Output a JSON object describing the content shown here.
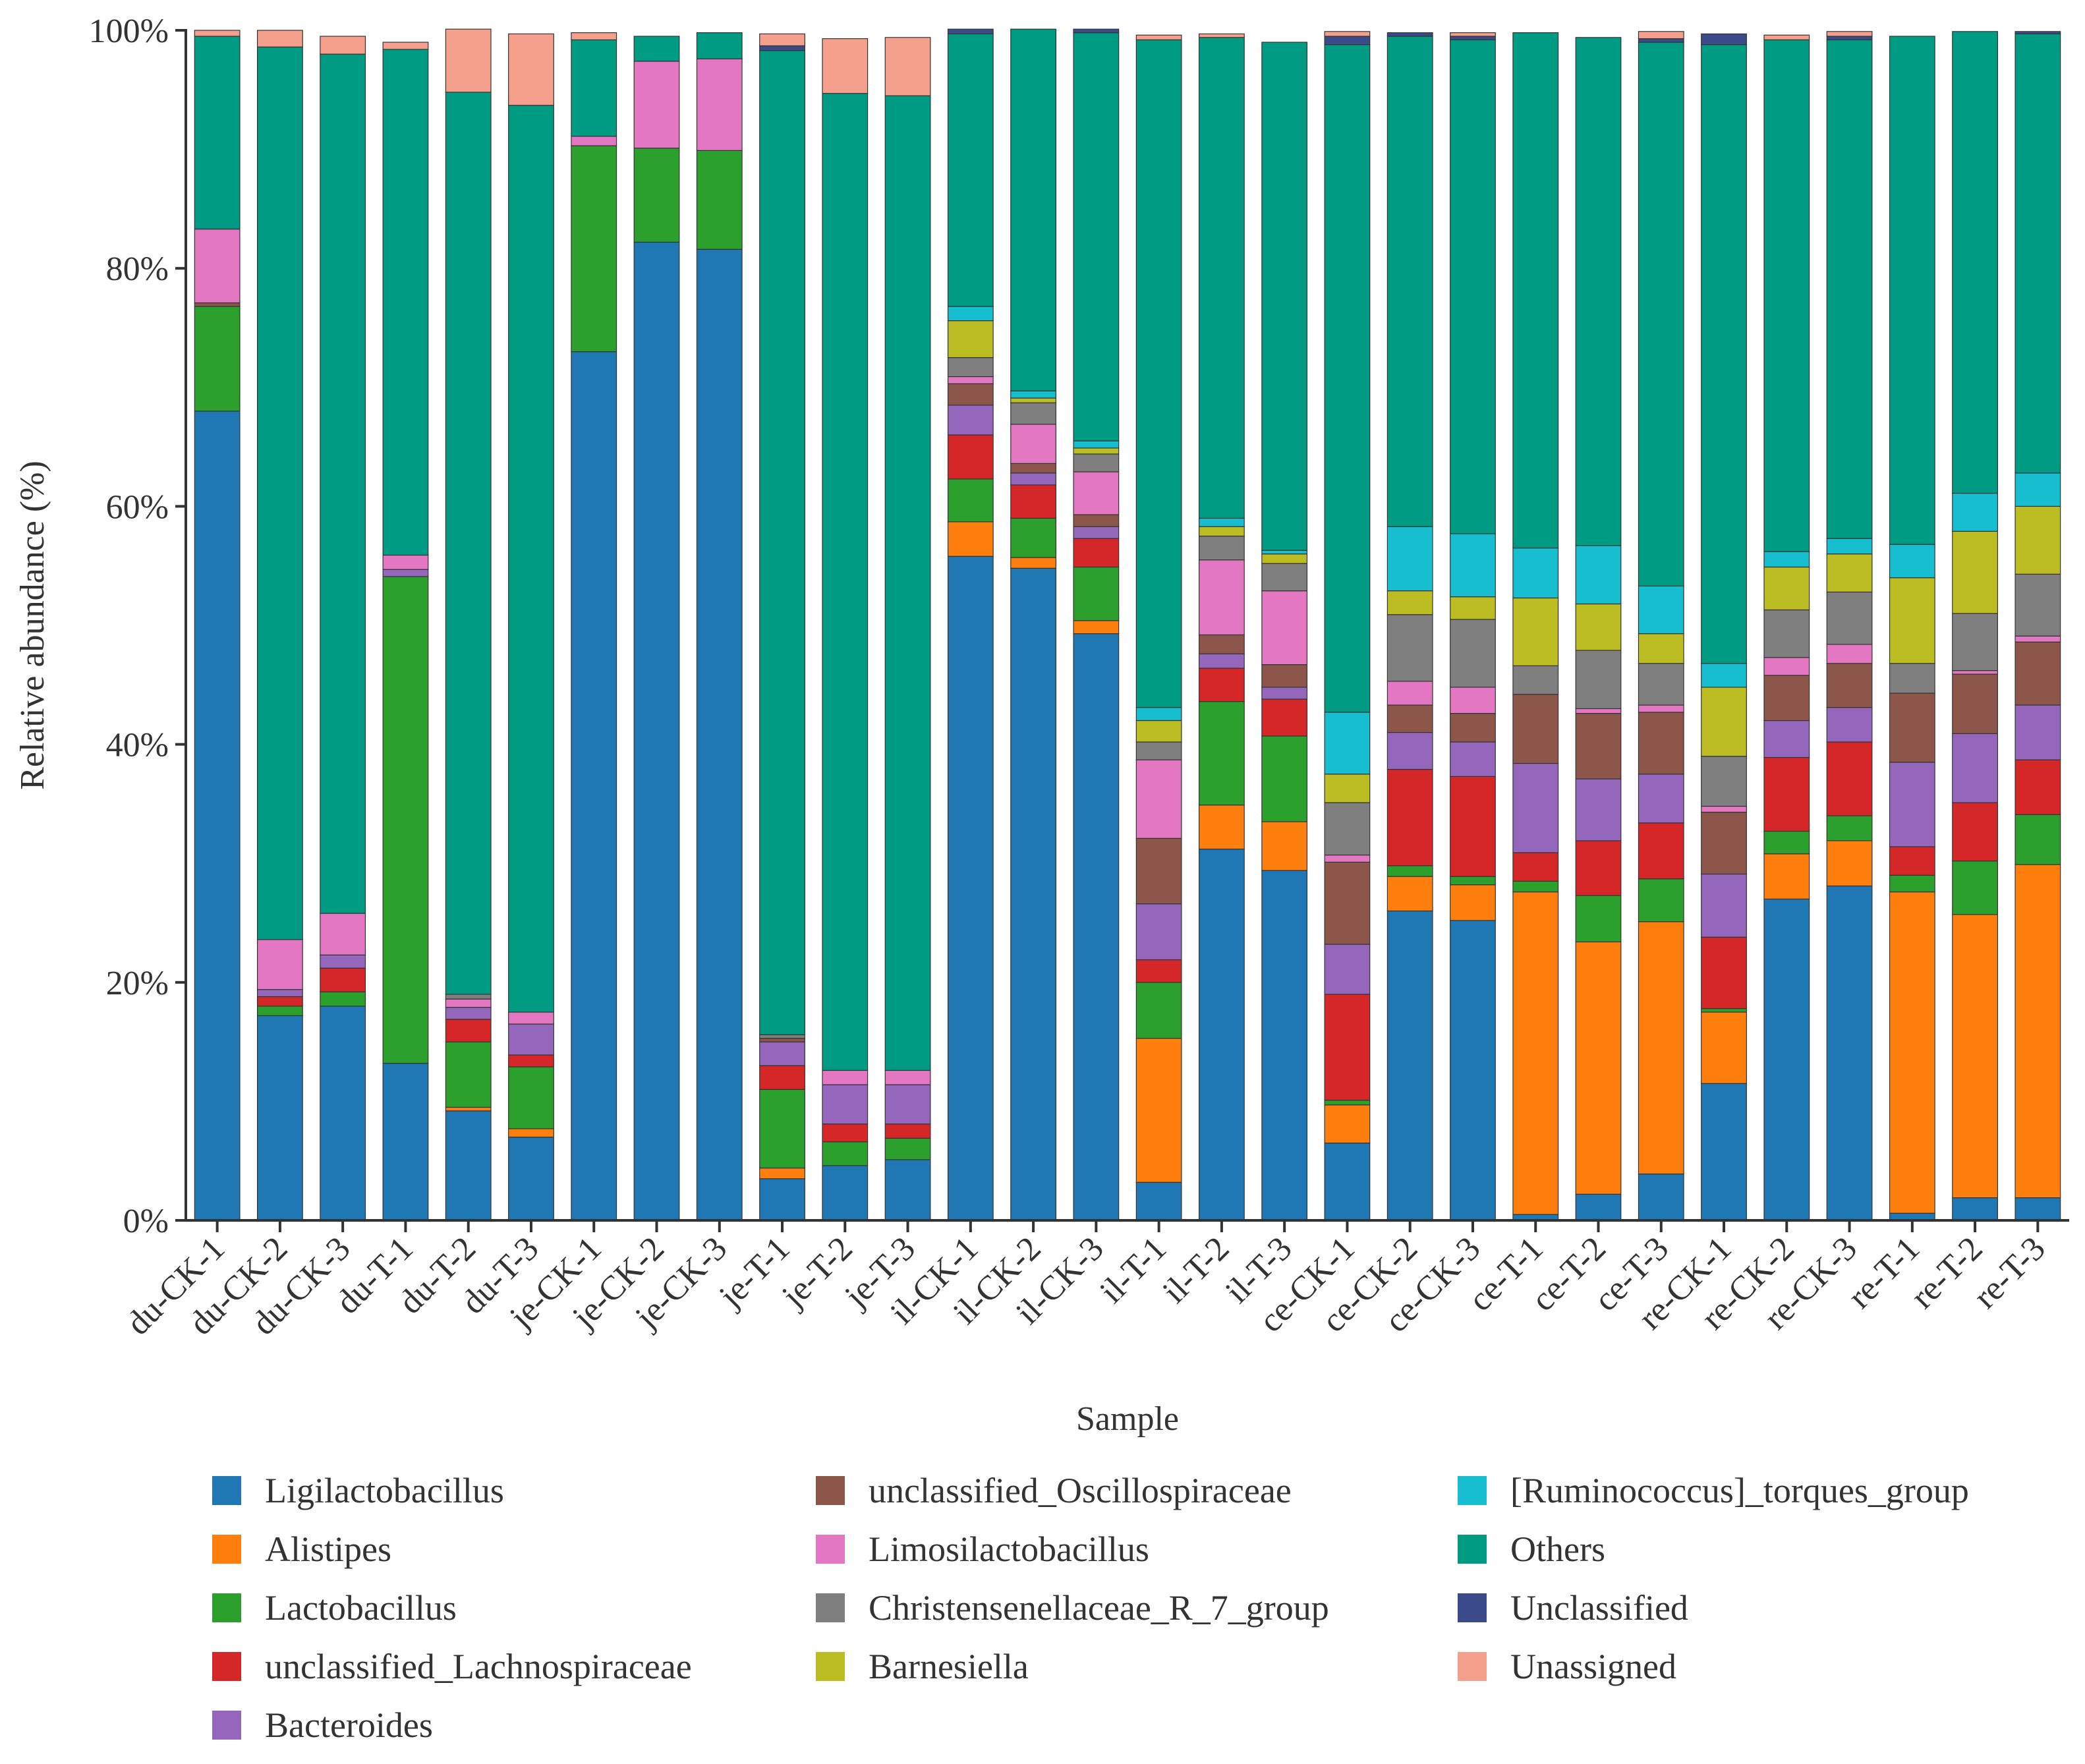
{
  "chart_data": {
    "type": "bar",
    "stacked": true,
    "xlabel": "Sample",
    "ylabel": "Relative abundance (%)",
    "ylim": [
      0,
      100
    ],
    "y_ticks": [
      "0%",
      "20%",
      "40%",
      "60%",
      "80%",
      "100%"
    ],
    "categories": [
      "du-CK-1",
      "du-CK-2",
      "du-CK-3",
      "du-T-1",
      "du-T-2",
      "du-T-3",
      "je-CK-1",
      "je-CK-2",
      "je-CK-3",
      "je-T-1",
      "je-T-2",
      "je-T-3",
      "il-CK-1",
      "il-CK-2",
      "il-CK-3",
      "il-T-1",
      "il-T-2",
      "il-T-3",
      "ce-CK-1",
      "ce-CK-2",
      "ce-CK-3",
      "ce-T-1",
      "ce-T-2",
      "ce-T-3",
      "re-CK-1",
      "re-CK-2",
      "re-CK-3",
      "re-T-1",
      "re-T-2",
      "re-T-3"
    ],
    "legend_position": "bottom",
    "series": [
      {
        "name": "Ligilactobacillus",
        "color": "#1f77b4",
        "values": [
          68,
          17.2,
          18,
          13.2,
          9.2,
          7,
          73,
          82.2,
          81.6,
          3.5,
          4.6,
          5.1,
          55.8,
          54.8,
          49.3,
          3.2,
          31.2,
          29.4,
          6.5,
          26,
          25.2,
          0.5,
          2.2,
          3.9,
          11.5,
          27,
          28.1,
          0.6,
          1.9,
          1.9
        ]
      },
      {
        "name": "Alistipes",
        "color": "#ff7f0e",
        "values": [
          0,
          0,
          0,
          0,
          0.3,
          0.7,
          0,
          0,
          0,
          0.9,
          0,
          0,
          2.9,
          0.9,
          1.1,
          12.1,
          3.7,
          4.1,
          3.2,
          2.9,
          3,
          27.1,
          21.2,
          21.2,
          6,
          3.8,
          3.8,
          27,
          23.8,
          28
        ]
      },
      {
        "name": "Lactobacillus",
        "color": "#2ca02c",
        "values": [
          8.8,
          0.8,
          1.2,
          40.9,
          5.5,
          5.2,
          17.3,
          7.9,
          8.3,
          6.6,
          2,
          1.8,
          3.6,
          3.3,
          4.5,
          4.7,
          8.7,
          7.2,
          0.4,
          0.9,
          0.7,
          0.9,
          3.9,
          3.6,
          0.3,
          1.9,
          2.1,
          1.4,
          4.5,
          4.2
        ]
      },
      {
        "name": "unclassified_Lachnospiraceae",
        "color": "#d62728",
        "values": [
          0,
          0.8,
          2,
          0,
          1.9,
          1,
          0,
          0,
          0,
          2,
          1.5,
          1.2,
          3.7,
          2.8,
          2.4,
          1.9,
          2.8,
          3.1,
          8.9,
          8.1,
          8.4,
          2.4,
          4.6,
          4.7,
          6,
          6.2,
          6.2,
          2.4,
          4.9,
          4.6
        ]
      },
      {
        "name": "Bacteroides",
        "color": "#9467bd",
        "values": [
          0,
          0.6,
          1.1,
          0.6,
          1,
          2.6,
          0,
          0,
          0,
          2,
          3.3,
          3.3,
          2.5,
          1,
          1,
          4.7,
          1.2,
          1,
          4.2,
          3.1,
          2.9,
          7.5,
          5.2,
          4.1,
          5.3,
          3.1,
          2.9,
          7.1,
          5.8,
          4.6
        ]
      },
      {
        "name": "unclassified_Oscillospiraceae",
        "color": "#8c564b",
        "values": [
          0.3,
          0,
          0,
          0,
          0,
          0,
          0,
          0,
          0,
          0.3,
          0,
          0,
          1.8,
          0.8,
          1,
          5.5,
          1.6,
          1.9,
          6.9,
          2.3,
          2.4,
          5.8,
          5.5,
          5.2,
          5.2,
          3.8,
          3.7,
          5.8,
          5,
          5.3
        ]
      },
      {
        "name": "Limosilactobacillus",
        "color": "#e377c2",
        "values": [
          6.2,
          4.2,
          3.5,
          1.2,
          0.7,
          1,
          0.8,
          7.3,
          7.7,
          0,
          1.2,
          1.2,
          0.6,
          3.3,
          3.6,
          6.6,
          6.3,
          6.2,
          0.6,
          2,
          2.2,
          0,
          0.4,
          0.6,
          0.5,
          1.5,
          1.6,
          0,
          0.3,
          0.5
        ]
      },
      {
        "name": "Christensenellaceae_R_7_group",
        "color": "#7f7f7f",
        "values": [
          0,
          0,
          0,
          0,
          0.4,
          0,
          0,
          0,
          0,
          0.3,
          0,
          0,
          1.6,
          1.8,
          1.5,
          1.5,
          2,
          2.3,
          4.4,
          5.6,
          5.7,
          2.4,
          4.9,
          3.5,
          4.2,
          4,
          4.4,
          2.5,
          4.8,
          5.2
        ]
      },
      {
        "name": "Barnesiella",
        "color": "#bcbd22",
        "values": [
          0,
          0,
          0,
          0,
          0,
          0,
          0,
          0,
          0,
          0,
          0,
          0,
          3.1,
          0.4,
          0.5,
          1.8,
          0.8,
          0.8,
          2.4,
          2,
          1.9,
          5.7,
          3.9,
          2.5,
          5.8,
          3.6,
          3.2,
          7.2,
          6.9,
          5.7
        ]
      },
      {
        "name": "[Ruminococcus]_torques_group",
        "color": "#17becf",
        "values": [
          0,
          0,
          0,
          0,
          0,
          0,
          0,
          0,
          0,
          0,
          0,
          0,
          1.2,
          0.6,
          0.6,
          1.1,
          0.7,
          0.3,
          5.2,
          5.4,
          5.3,
          4.2,
          4.9,
          4,
          2,
          1.3,
          1.3,
          2.8,
          3.2,
          2.8
        ]
      },
      {
        "name": "Others",
        "color": "#009b83",
        "values": [
          16.2,
          75,
          72.2,
          42.5,
          75.8,
          76.2,
          8.1,
          2.1,
          2.2,
          82.7,
          82.1,
          81.9,
          22.9,
          30.4,
          34.3,
          56.1,
          40.4,
          42.7,
          56.1,
          41.2,
          41.5,
          43.3,
          42.7,
          45.7,
          52,
          43,
          41.9,
          42.7,
          38.8,
          36.9
        ]
      },
      {
        "name": "Unclassified",
        "color": "#3b4b8a",
        "values": [
          0,
          0,
          0,
          0,
          0,
          0,
          0,
          0,
          0,
          0.4,
          0,
          0,
          0.4,
          0,
          0.3,
          0,
          0,
          0,
          0.7,
          0.3,
          0.3,
          0,
          0,
          0.3,
          0.9,
          0,
          0.3,
          0,
          0,
          0.2
        ]
      },
      {
        "name": "Unassigned",
        "color": "#f4a08c",
        "values": [
          0.5,
          1.4,
          1.5,
          0.6,
          5.3,
          6,
          0.6,
          0,
          0,
          1,
          4.6,
          4.9,
          0,
          0,
          0,
          0.4,
          0.3,
          0,
          0.4,
          0,
          0.3,
          0,
          0,
          0.6,
          0,
          0.4,
          0.4,
          0,
          0,
          0
        ]
      }
    ]
  }
}
